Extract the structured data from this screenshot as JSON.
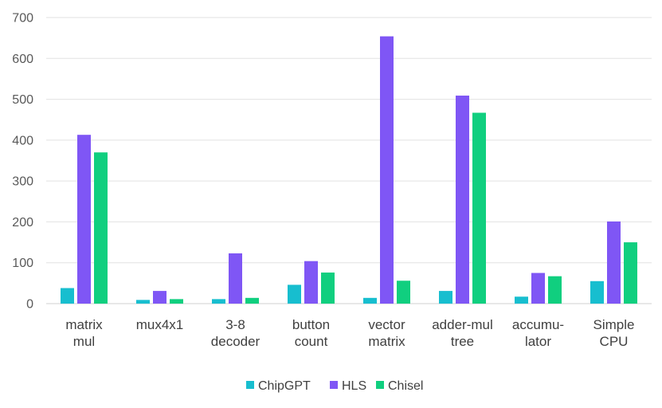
{
  "chart_data": {
    "type": "bar",
    "categories": [
      [
        "matrix",
        "mul"
      ],
      [
        "mux4x1"
      ],
      [
        "3-8",
        "decoder"
      ],
      [
        "button",
        "count"
      ],
      [
        "vector",
        "matrix"
      ],
      [
        "adder-mul",
        "tree"
      ],
      [
        "accumu-",
        "lator"
      ],
      [
        "Simple",
        "CPU"
      ]
    ],
    "series": [
      {
        "name": "ChipGPT",
        "color": "#17becf",
        "values": [
          38,
          9,
          11,
          46,
          14,
          31,
          17,
          55
        ]
      },
      {
        "name": "HLS",
        "color": "#7f56f5",
        "values": [
          413,
          31,
          123,
          104,
          654,
          509,
          75,
          201
        ]
      },
      {
        "name": "Chisel",
        "color": "#10cf7f",
        "values": [
          370,
          11,
          14,
          76,
          56,
          467,
          67,
          150
        ]
      }
    ],
    "ylim": [
      0,
      700
    ],
    "yticks": [
      0,
      100,
      200,
      300,
      400,
      500,
      600,
      700
    ],
    "grid": true,
    "legend_position": "bottom-center"
  }
}
